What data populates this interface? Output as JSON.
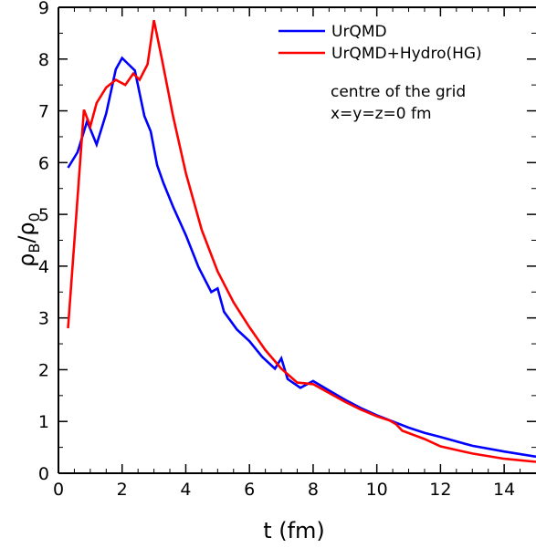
{
  "chart_data": {
    "type": "line",
    "xlabel": "t (fm)",
    "ylabel": "ρB/ρ0",
    "ylabel_parts": {
      "main": "ρ",
      "sub1": "B",
      "slash": "/",
      "main2": "ρ",
      "sub2": "0"
    },
    "xlim": [
      0,
      15
    ],
    "ylim": [
      0,
      9
    ],
    "xticks": [
      0,
      2,
      4,
      6,
      8,
      10,
      12,
      14
    ],
    "yticks": [
      0,
      1,
      2,
      3,
      4,
      5,
      6,
      7,
      8,
      9
    ],
    "grid": false,
    "legend_position": "top-right",
    "annotations": [
      "centre of the grid",
      "x=y=z=0 fm"
    ],
    "series": [
      {
        "name": "UrQMD",
        "color": "#0000ff",
        "x": [
          0.3,
          0.6,
          0.9,
          1.2,
          1.5,
          1.8,
          2.0,
          2.2,
          2.4,
          2.7,
          2.9,
          3.1,
          3.3,
          3.6,
          4.0,
          4.4,
          4.8,
          5.0,
          5.2,
          5.6,
          6.0,
          6.4,
          6.8,
          7.0,
          7.2,
          7.6,
          8.0,
          8.5,
          9.0,
          9.5,
          10.0,
          10.5,
          11.0,
          11.5,
          12.0,
          13.0,
          14.0,
          15.0
        ],
        "y": [
          5.9,
          6.2,
          6.8,
          6.35,
          6.95,
          7.8,
          8.02,
          7.9,
          7.78,
          6.9,
          6.6,
          5.95,
          5.6,
          5.15,
          4.6,
          3.98,
          3.5,
          3.57,
          3.12,
          2.78,
          2.55,
          2.25,
          2.02,
          2.22,
          1.82,
          1.65,
          1.78,
          1.6,
          1.42,
          1.26,
          1.12,
          1.0,
          0.88,
          0.78,
          0.7,
          0.53,
          0.42,
          0.32
        ]
      },
      {
        "name": "UrQMD+Hydro(HG)",
        "color": "#ff0000",
        "x": [
          0.3,
          0.55,
          0.8,
          1.0,
          1.2,
          1.5,
          1.8,
          2.1,
          2.35,
          2.55,
          2.8,
          3.0,
          3.25,
          3.6,
          4.0,
          4.5,
          5.0,
          5.5,
          6.0,
          6.5,
          7.0,
          7.5,
          8.0,
          8.5,
          9.0,
          9.5,
          10.0,
          10.4,
          10.6,
          10.8,
          11.5,
          12.0,
          13.0,
          14.0,
          15.0
        ],
        "y": [
          2.8,
          4.9,
          7.02,
          6.7,
          7.15,
          7.45,
          7.6,
          7.5,
          7.72,
          7.6,
          7.9,
          8.75,
          8.0,
          6.9,
          5.8,
          4.7,
          3.9,
          3.3,
          2.82,
          2.38,
          2.02,
          1.75,
          1.72,
          1.55,
          1.38,
          1.23,
          1.1,
          1.02,
          0.95,
          0.82,
          0.66,
          0.52,
          0.38,
          0.28,
          0.22
        ]
      }
    ]
  }
}
